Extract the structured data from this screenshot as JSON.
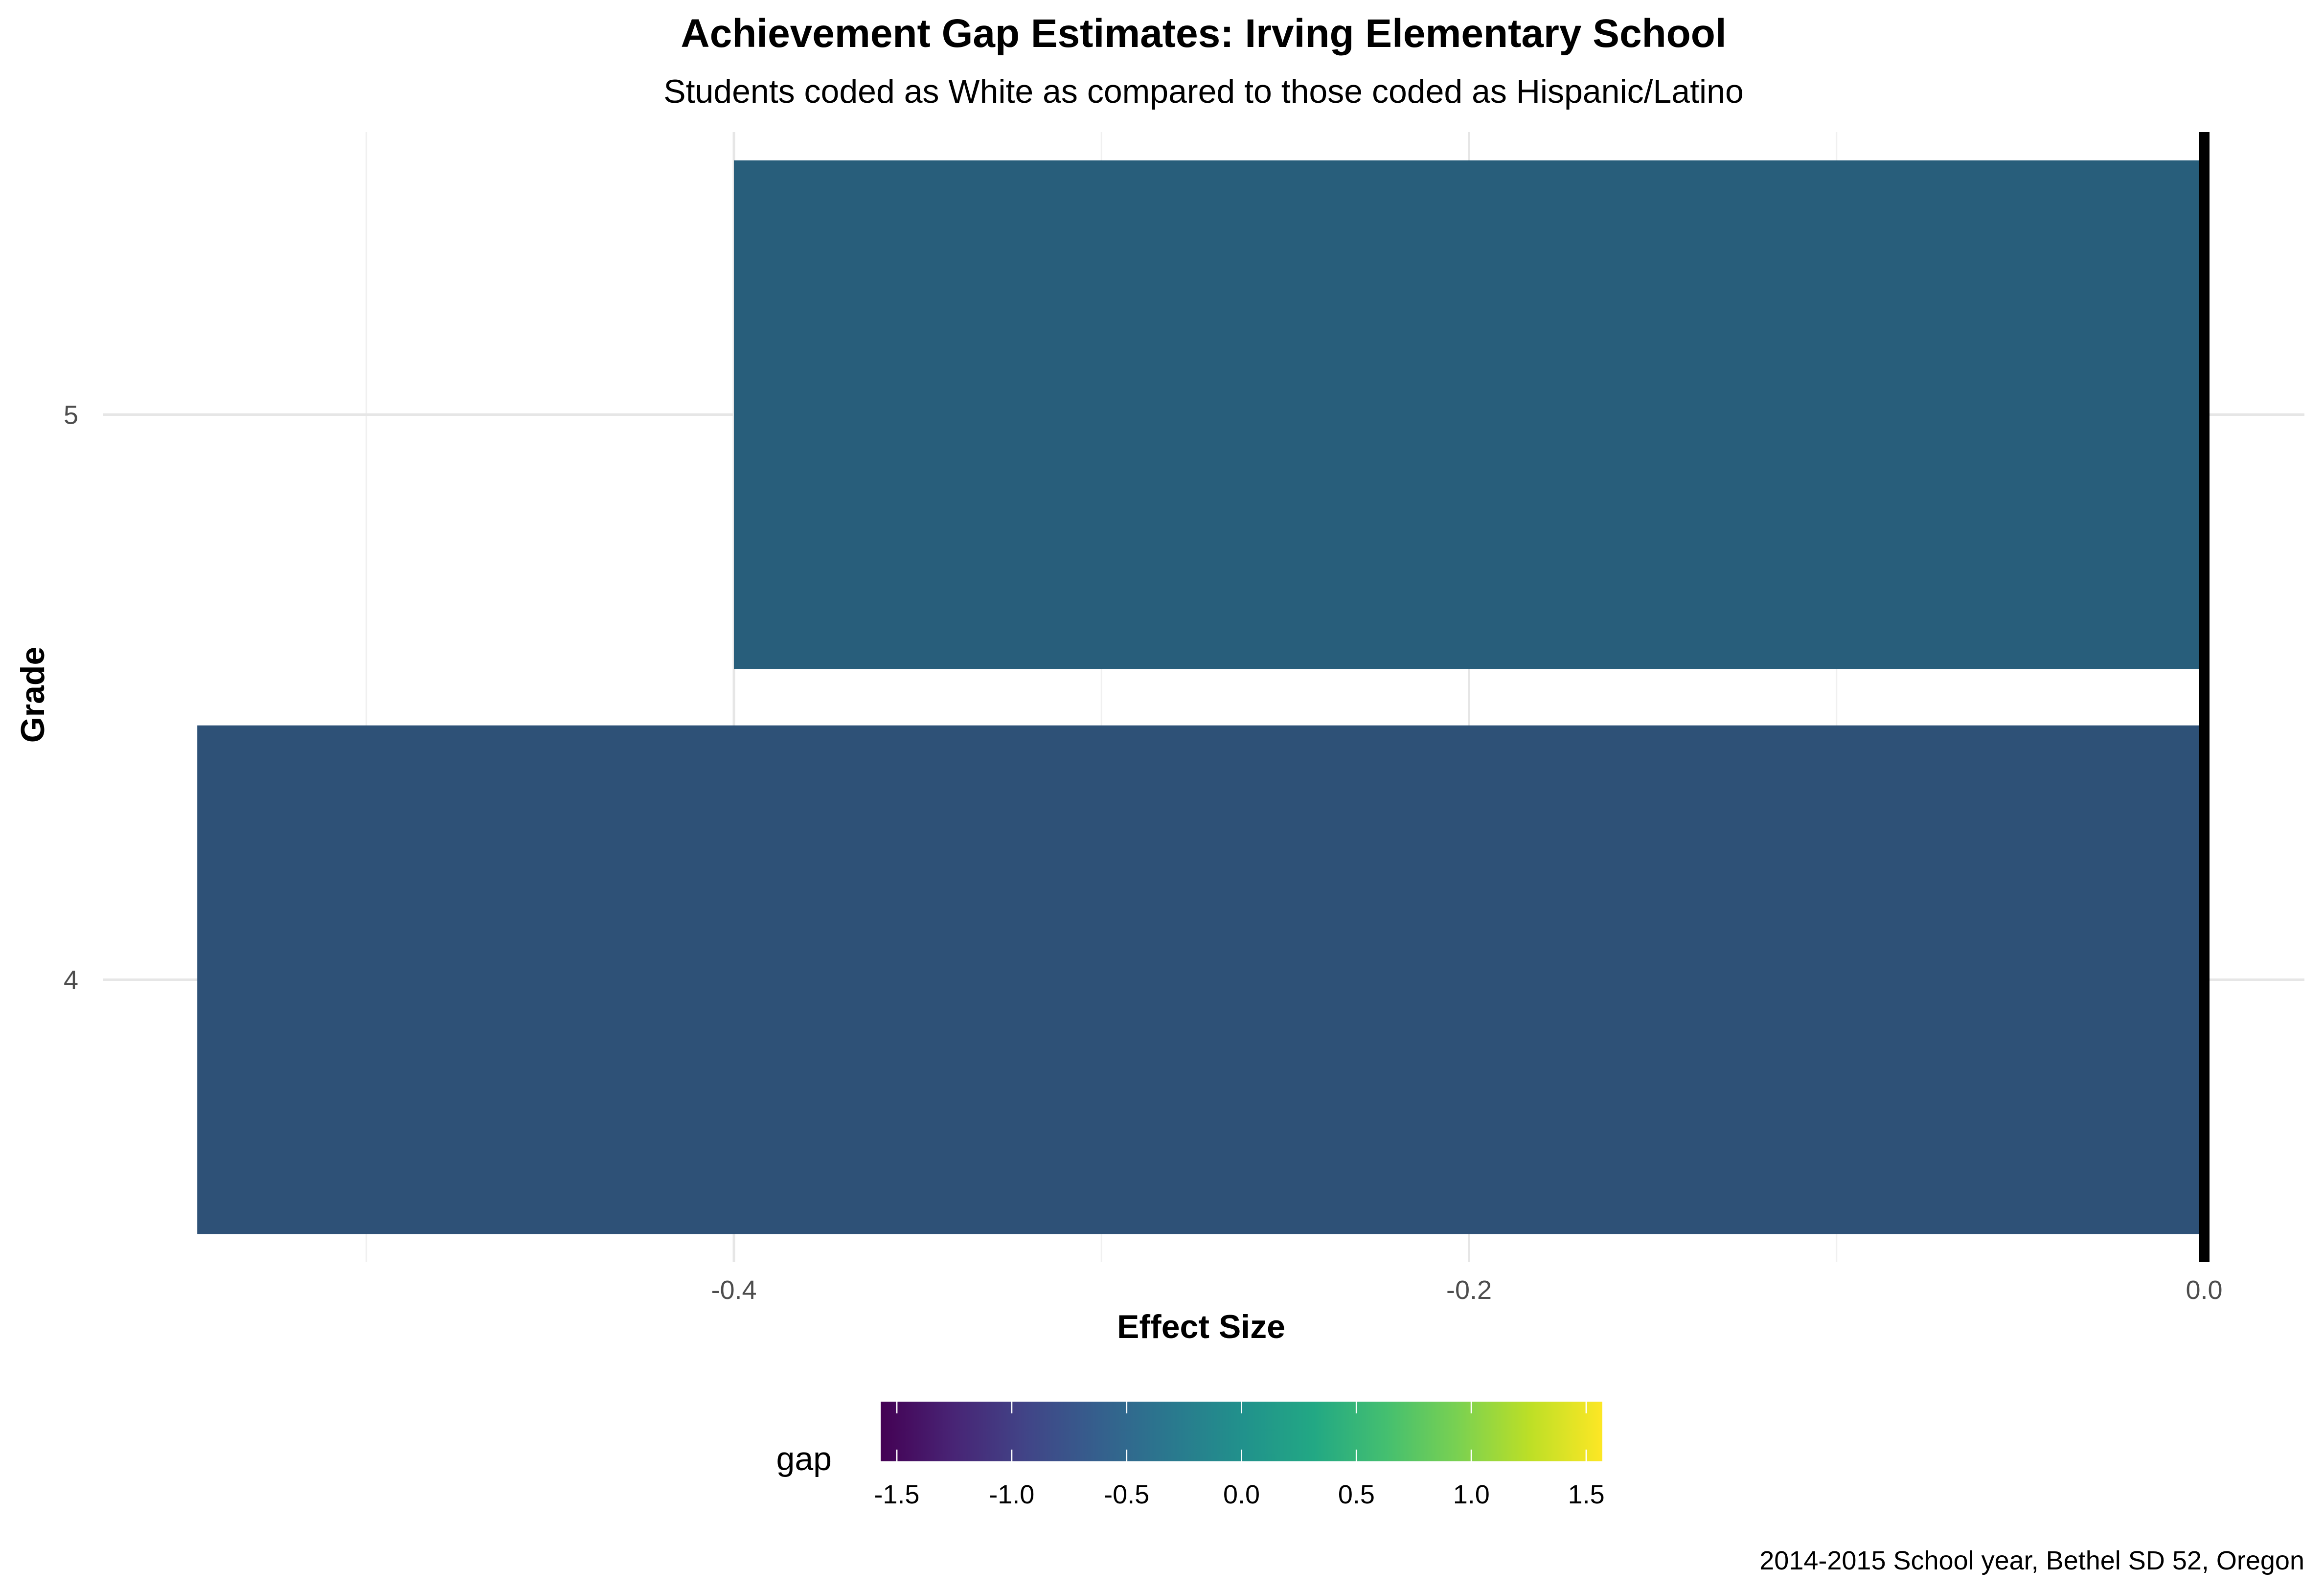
{
  "chart_data": {
    "type": "bar",
    "orientation": "horizontal",
    "title": "Achievement Gap Estimates: Irving Elementary School",
    "subtitle": "Students coded as White as compared to those coded as Hispanic/Latino",
    "xlabel": "Effect Size",
    "ylabel": "Grade",
    "caption": "2014-2015 School year, Bethel SD 52, Oregon",
    "categories": [
      "4",
      "5"
    ],
    "values": [
      -0.546,
      -0.4
    ],
    "bar_colors": [
      "#2e5177",
      "#285e7b"
    ],
    "xlim": [
      -0.6,
      0.0
    ],
    "x_ticks": [
      -0.4,
      -0.2,
      0.0
    ],
    "x_tick_labels": [
      "-0.4",
      "-0.2",
      "0.0"
    ],
    "reference_line": 0.0,
    "grid": true,
    "legend": {
      "title": "gap",
      "type": "colorbar",
      "position": "bottom",
      "palette": "viridis",
      "range": [
        -1.57,
        1.57
      ],
      "ticks": [
        -1.5,
        -1.0,
        -0.5,
        0.0,
        0.5,
        1.0,
        1.5
      ],
      "tick_labels": [
        "-1.5",
        "-1.0",
        "-0.5",
        "0.0",
        "0.5",
        "1.0",
        "1.5"
      ]
    }
  }
}
